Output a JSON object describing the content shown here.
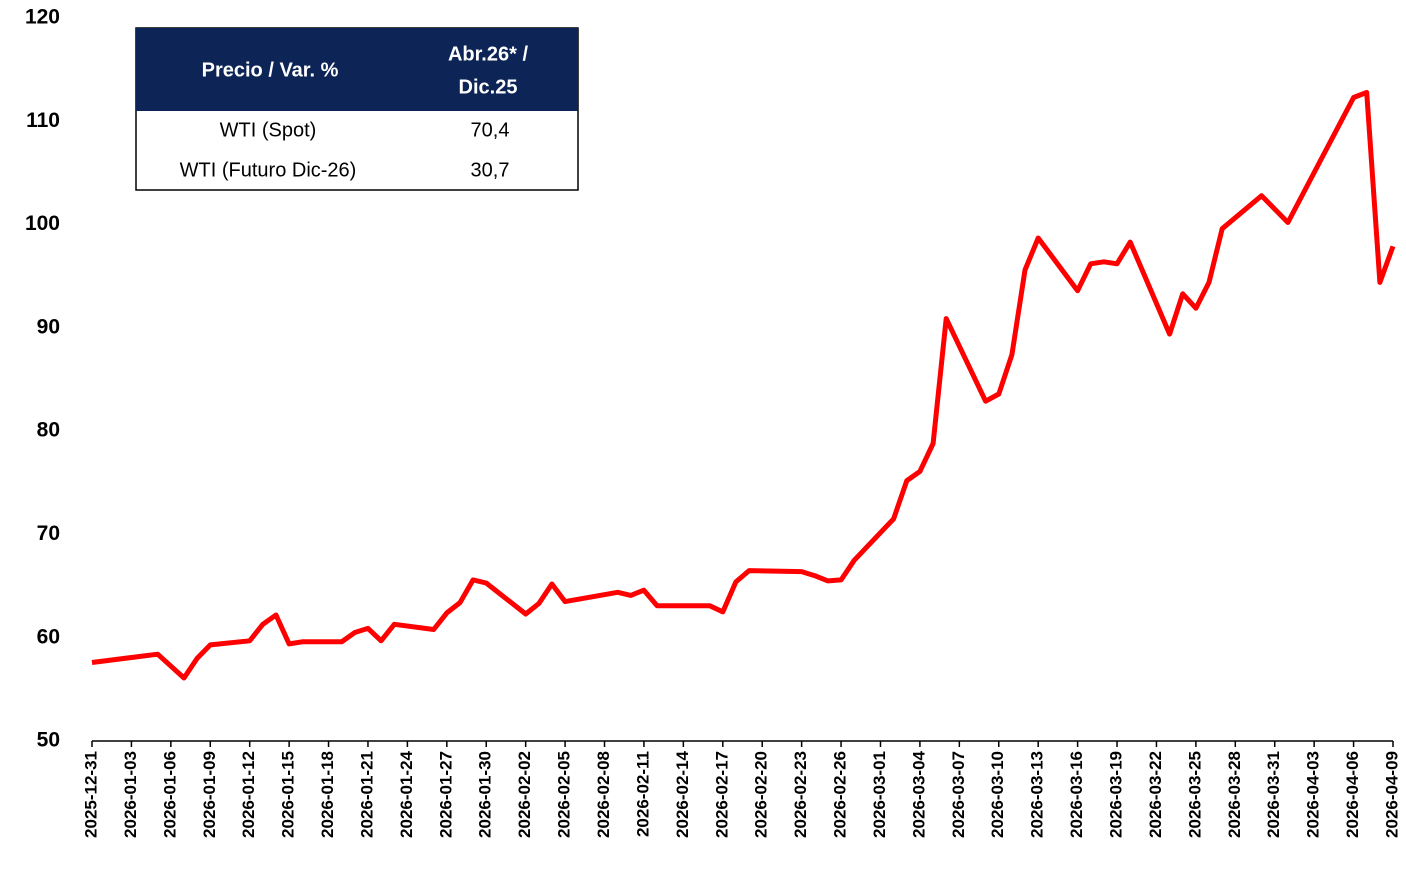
{
  "chart_data": {
    "type": "line",
    "x": [
      "2025-12-31",
      "2026-01-05",
      "2026-01-07",
      "2026-01-08",
      "2026-01-09",
      "2026-01-12",
      "2026-01-13",
      "2026-01-14",
      "2026-01-15",
      "2026-01-16",
      "2026-01-19",
      "2026-01-20",
      "2026-01-21",
      "2026-01-22",
      "2026-01-23",
      "2026-01-26",
      "2026-01-27",
      "2026-01-28",
      "2026-01-29",
      "2026-01-30",
      "2026-02-02",
      "2026-02-03",
      "2026-02-04",
      "2026-02-05",
      "2026-02-09",
      "2026-02-10",
      "2026-02-11",
      "2026-02-12",
      "2026-02-16",
      "2026-02-17",
      "2026-02-18",
      "2026-02-19",
      "2026-02-23",
      "2026-02-24",
      "2026-02-25",
      "2026-02-26",
      "2026-02-27",
      "2026-03-02",
      "2026-03-03",
      "2026-03-04",
      "2026-03-05",
      "2026-03-06",
      "2026-03-09",
      "2026-03-10",
      "2026-03-11",
      "2026-03-12",
      "2026-03-13",
      "2026-03-16",
      "2026-03-17",
      "2026-03-18",
      "2026-03-19",
      "2026-03-20",
      "2026-03-23",
      "2026-03-24",
      "2026-03-25",
      "2026-03-26",
      "2026-03-27",
      "2026-03-30",
      "2026-04-01",
      "2026-04-06",
      "2026-04-07",
      "2026-04-08",
      "2026-04-09"
    ],
    "series": [
      {
        "name": "WTI",
        "color": "#ff0000",
        "values": [
          57.6,
          58.4,
          56.1,
          58.0,
          59.3,
          59.7,
          61.3,
          62.2,
          59.4,
          59.6,
          59.6,
          60.5,
          60.9,
          59.7,
          61.3,
          60.8,
          62.4,
          63.4,
          65.6,
          65.3,
          62.3,
          63.3,
          65.2,
          63.5,
          64.4,
          64.1,
          64.6,
          63.1,
          63.1,
          62.5,
          65.4,
          66.5,
          66.4,
          66.0,
          65.5,
          65.6,
          67.5,
          71.5,
          75.2,
          76.1,
          78.8,
          90.9,
          82.9,
          83.6,
          87.4,
          95.6,
          98.7,
          93.6,
          96.2,
          96.4,
          96.2,
          98.3,
          89.4,
          93.3,
          91.9,
          94.4,
          99.6,
          102.8,
          100.2,
          112.3,
          112.8,
          94.4,
          97.9
        ]
      }
    ],
    "xlim": [
      "2025-12-31",
      "2026-04-09"
    ],
    "xticks": [
      "2025-12-31",
      "2026-01-03",
      "2026-01-06",
      "2026-01-09",
      "2026-01-12",
      "2026-01-15",
      "2026-01-18",
      "2026-01-21",
      "2026-01-24",
      "2026-01-27",
      "2026-01-30",
      "2026-02-02",
      "2026-02-05",
      "2026-02-08",
      "2026-02-11",
      "2026-02-14",
      "2026-02-17",
      "2026-02-20",
      "2026-02-23",
      "2026-02-26",
      "2026-03-01",
      "2026-03-04",
      "2026-03-07",
      "2026-03-10",
      "2026-03-13",
      "2026-03-16",
      "2026-03-19",
      "2026-03-22",
      "2026-03-25",
      "2026-03-28",
      "2026-03-31",
      "2026-04-03",
      "2026-04-06",
      "2026-04-09"
    ],
    "ylim": [
      50,
      120
    ],
    "yticks": [
      50,
      60,
      70,
      80,
      90,
      100,
      110,
      120
    ],
    "grid": false,
    "table": {
      "header": [
        "Precio / Var. %",
        "Abr.26* /",
        "Dic.25"
      ],
      "rows": [
        [
          "WTI (Spot)",
          "70,4"
        ],
        [
          "WTI (Futuro Dic-26)",
          "30,7"
        ]
      ]
    }
  }
}
